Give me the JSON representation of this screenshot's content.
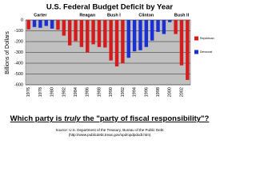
{
  "chart_data": {
    "type": "bar",
    "title": "U.S. Federal Budget Deficit by Year",
    "y_label": "Billions of Dollars",
    "categories": [
      "1976",
      null,
      "1978",
      null,
      "1980",
      null,
      "1982",
      null,
      "1984",
      null,
      "1986",
      null,
      "1988",
      null,
      "1990",
      null,
      "1992",
      null,
      "1994",
      null,
      "1996",
      null,
      "1998",
      null,
      "2000",
      null,
      "2002",
      null
    ],
    "series": [
      {
        "name": "Republican",
        "color": "#d41c1c",
        "values": [
          -87,
          null,
          null,
          null,
          null,
          -90,
          -145,
          -235,
          -195,
          -250,
          -300,
          -225,
          -250,
          -255,
          -375,
          -430,
          -400,
          null,
          null,
          null,
          null,
          null,
          null,
          null,
          null,
          -130,
          -420,
          -555
        ]
      },
      {
        "name": "Democrat",
        "color": "#1c2fd4",
        "values": [
          null,
          -65,
          -72,
          -55,
          -80,
          null,
          null,
          null,
          null,
          null,
          null,
          null,
          null,
          null,
          null,
          null,
          null,
          -350,
          -290,
          -280,
          -250,
          -190,
          -110,
          -130,
          -20,
          null,
          null,
          null
        ]
      }
    ],
    "annotations": [
      "Carter",
      "Reagan",
      "Bush I",
      "Clinton",
      "Bush II"
    ],
    "ylim": [
      -600,
      0
    ],
    "yticks": [
      0,
      -100,
      -200,
      -300,
      -400,
      -500,
      -600
    ],
    "grid": true,
    "legend": "right",
    "question": [
      "Which party is ",
      "truly",
      " the \"party of fiscal responsibility\"?"
    ],
    "source": [
      "Source: U.S. Department of the Treasury, Bureau of the Public Debt",
      "(http://www.publicdebt.treas.gov/opd/opdpdodt.htm)"
    ]
  }
}
